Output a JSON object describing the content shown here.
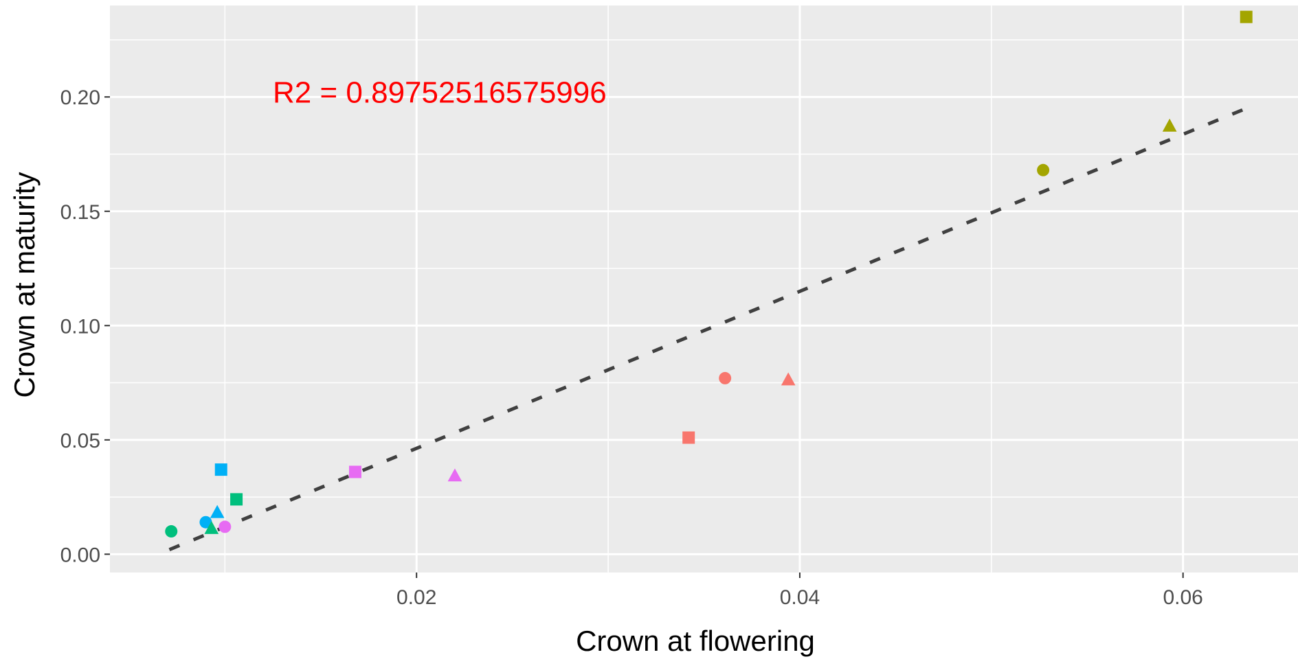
{
  "chart_data": {
    "type": "scatter",
    "xlabel": "Crown at flowering",
    "ylabel": "Crown at maturity",
    "xlim": [
      0.004,
      0.066
    ],
    "ylim": [
      -0.008,
      0.24
    ],
    "x_ticks": [
      {
        "value": 0.02,
        "label": "0.02"
      },
      {
        "value": 0.04,
        "label": "0.04"
      },
      {
        "value": 0.06,
        "label": "0.06"
      }
    ],
    "y_ticks": [
      {
        "value": 0.0,
        "label": "0.00"
      },
      {
        "value": 0.05,
        "label": "0.05"
      },
      {
        "value": 0.1,
        "label": "0.10"
      },
      {
        "value": 0.15,
        "label": "0.15"
      },
      {
        "value": 0.2,
        "label": "0.20"
      }
    ],
    "annotation": {
      "text": "R2 =  0.89752516575996",
      "x": 0.0125,
      "y": 0.1975,
      "color": "#ff0000"
    },
    "trendline": {
      "x": [
        0.0071,
        0.0633
      ],
      "y": [
        0.002,
        0.195
      ],
      "style": "dashed",
      "color": "#404040"
    },
    "grid": true,
    "background": "#ebebeb",
    "points": [
      {
        "x": 0.0633,
        "y": 0.235,
        "shape": "square",
        "color": "#a3a500"
      },
      {
        "x": 0.0593,
        "y": 0.187,
        "shape": "triangle",
        "color": "#a3a500"
      },
      {
        "x": 0.0527,
        "y": 0.168,
        "shape": "circle",
        "color": "#a3a500"
      },
      {
        "x": 0.0361,
        "y": 0.077,
        "shape": "circle",
        "color": "#f8766d"
      },
      {
        "x": 0.0394,
        "y": 0.076,
        "shape": "triangle",
        "color": "#f8766d"
      },
      {
        "x": 0.0342,
        "y": 0.051,
        "shape": "square",
        "color": "#f8766d"
      },
      {
        "x": 0.022,
        "y": 0.034,
        "shape": "triangle",
        "color": "#e76bf3"
      },
      {
        "x": 0.0168,
        "y": 0.036,
        "shape": "square",
        "color": "#e76bf3"
      },
      {
        "x": 0.01,
        "y": 0.012,
        "shape": "circle",
        "color": "#e76bf3"
      },
      {
        "x": 0.0098,
        "y": 0.037,
        "shape": "square",
        "color": "#00b0f6"
      },
      {
        "x": 0.0096,
        "y": 0.018,
        "shape": "triangle",
        "color": "#00b0f6"
      },
      {
        "x": 0.009,
        "y": 0.014,
        "shape": "circle",
        "color": "#00b0f6"
      },
      {
        "x": 0.0106,
        "y": 0.024,
        "shape": "square",
        "color": "#00bf7d"
      },
      {
        "x": 0.0093,
        "y": 0.011,
        "shape": "triangle",
        "color": "#00bf7d"
      },
      {
        "x": 0.0072,
        "y": 0.01,
        "shape": "circle",
        "color": "#00bf7d"
      }
    ]
  }
}
